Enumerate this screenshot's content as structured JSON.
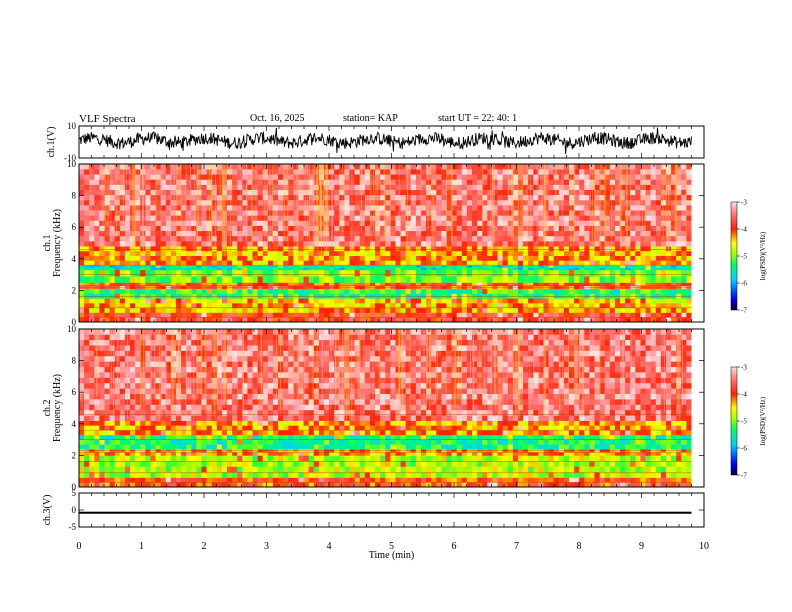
{
  "header": {
    "title": "VLF Spectra",
    "date": "Oct. 16, 2025",
    "station": "station= KAP",
    "start": "start  UT =  22: 40: 1"
  },
  "chart_data": [
    {
      "type": "line",
      "panel": "ch.1 waveform",
      "ylabel": "ch.1(V)",
      "ylim": [
        -10,
        10
      ],
      "yticks": [
        -10,
        10
      ],
      "xlim": [
        0,
        10
      ],
      "series": [
        {
          "x_range": [
            0,
            9.8
          ],
          "values_range": [
            -8,
            9
          ],
          "mean": 1
        }
      ]
    },
    {
      "type": "heatmap",
      "panel": "ch.1 spectrogram",
      "ylabel_top": "ch.1",
      "ylabel": "Frequency (kHz)",
      "xlim": [
        0,
        10
      ],
      "ylim": [
        0,
        10
      ],
      "yticks": [
        0,
        2,
        4,
        6,
        8,
        10
      ],
      "colorbar": {
        "label": "log(PSD)(V²/Hz)",
        "range": [
          -7,
          -3
        ],
        "ticks": [
          -3,
          -4,
          -5,
          -6,
          -7
        ]
      },
      "frequency_bands": [
        {
          "from": 0,
          "to": 0.6,
          "level": -3.8
        },
        {
          "from": 0.6,
          "to": 1.5,
          "level": -4.4
        },
        {
          "from": 1.5,
          "to": 2.1,
          "level": -5.3
        },
        {
          "from": 2.1,
          "to": 2.5,
          "level": -4.0
        },
        {
          "from": 2.5,
          "to": 3.3,
          "level": -5.0
        },
        {
          "from": 3.3,
          "to": 3.6,
          "level": -5.6
        },
        {
          "from": 3.6,
          "to": 4.8,
          "level": -4.3
        },
        {
          "from": 4.8,
          "to": 10,
          "level": -3.5
        }
      ]
    },
    {
      "type": "heatmap",
      "panel": "ch.2 spectrogram",
      "ylabel_top": "ch.2",
      "ylabel": "Frequency (kHz)",
      "xlim": [
        0,
        10
      ],
      "ylim": [
        0,
        10
      ],
      "yticks": [
        0,
        2,
        4,
        6,
        8,
        10
      ],
      "colorbar": {
        "label": "log(PSD)(V²/Hz)",
        "range": [
          -7,
          -3
        ],
        "ticks": [
          -3,
          -4,
          -5,
          -6,
          -7
        ]
      },
      "frequency_bands": [
        {
          "from": 0,
          "to": 0.6,
          "level": -4.0
        },
        {
          "from": 0.6,
          "to": 2.0,
          "level": -4.8
        },
        {
          "from": 2.0,
          "to": 2.4,
          "level": -4.3
        },
        {
          "from": 2.4,
          "to": 3.3,
          "level": -5.4
        },
        {
          "from": 3.3,
          "to": 4.2,
          "level": -4.3
        },
        {
          "from": 4.2,
          "to": 10,
          "level": -3.5
        }
      ]
    },
    {
      "type": "line",
      "panel": "ch.3 waveform",
      "ylabel": "ch.3(V)",
      "ylim": [
        -5,
        5
      ],
      "yticks": [
        -5,
        0,
        5
      ],
      "xlim": [
        0,
        10
      ],
      "xticks": [
        0,
        1,
        2,
        3,
        4,
        5,
        6,
        7,
        8,
        9,
        10
      ],
      "xlabel": "Time (min)",
      "series": [
        {
          "x_range": [
            0,
            9.8
          ],
          "values_range": [
            -0.5,
            -1.1
          ]
        }
      ]
    }
  ],
  "colors": {
    "colormap": [
      "#000080",
      "#0000ff",
      "#00c8ff",
      "#00ff80",
      "#80ff00",
      "#ffff00",
      "#ff8000",
      "#ff0000",
      "#ffc8c8",
      "#ffffff"
    ],
    "trace": "#000000"
  }
}
